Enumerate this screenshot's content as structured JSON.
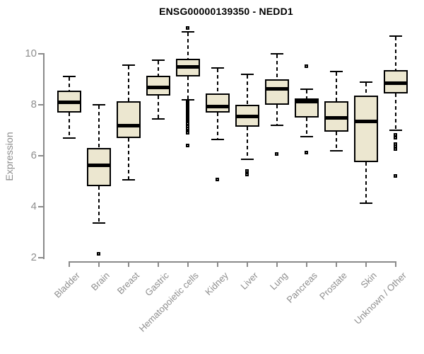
{
  "chart_data": {
    "type": "boxplot",
    "title": "ENSG00000139350 - NEDD1",
    "ylabel": "Expression",
    "y_axis": {
      "min": 2,
      "max": 10,
      "ticks": [
        10,
        8,
        6,
        4,
        2
      ]
    },
    "grid": false,
    "legend": false,
    "categories": [
      "Bladder",
      "Brain",
      "Breast",
      "Gastric",
      "Hematopoietic cells",
      "Kidney",
      "Liver",
      "Lung",
      "Pancreas",
      "Prostate",
      "Skin",
      "Unknown / Other"
    ],
    "boxes": [
      {
        "category": "Bladder",
        "whisker_low": 6.7,
        "q1": 7.7,
        "median": 8.1,
        "q3": 8.55,
        "whisker_high": 9.1,
        "outliers": []
      },
      {
        "category": "Brain",
        "whisker_low": 3.35,
        "q1": 4.8,
        "median": 5.65,
        "q3": 6.3,
        "whisker_high": 8.0,
        "outliers": [
          2.15
        ]
      },
      {
        "category": "Breast",
        "whisker_low": 5.05,
        "q1": 6.7,
        "median": 7.2,
        "q3": 8.15,
        "whisker_high": 9.55,
        "outliers": []
      },
      {
        "category": "Gastric",
        "whisker_low": 7.45,
        "q1": 8.35,
        "median": 8.7,
        "q3": 9.15,
        "whisker_high": 9.75,
        "outliers": []
      },
      {
        "category": "Hematopoietic cells",
        "whisker_low": 8.2,
        "q1": 9.1,
        "median": 9.5,
        "q3": 9.8,
        "whisker_high": 10.85,
        "outliers": [
          11.0,
          8.1,
          8.05,
          8.0,
          7.95,
          7.9,
          7.85,
          7.8,
          7.75,
          7.7,
          7.65,
          7.6,
          7.55,
          7.5,
          7.45,
          7.4,
          7.35,
          7.3,
          7.25,
          7.15,
          7.05,
          6.95,
          6.9,
          6.4
        ]
      },
      {
        "category": "Kidney",
        "whisker_low": 6.65,
        "q1": 7.7,
        "median": 7.95,
        "q3": 8.45,
        "whisker_high": 9.45,
        "outliers": [
          5.05
        ]
      },
      {
        "category": "Liver",
        "whisker_low": 5.85,
        "q1": 7.15,
        "median": 7.55,
        "q3": 8.0,
        "whisker_high": 9.2,
        "outliers": [
          5.4,
          5.25
        ]
      },
      {
        "category": "Lung",
        "whisker_low": 7.2,
        "q1": 8.0,
        "median": 8.65,
        "q3": 9.0,
        "whisker_high": 10.0,
        "outliers": [
          6.05
        ]
      },
      {
        "category": "Pancreas",
        "whisker_low": 6.75,
        "q1": 7.5,
        "median": 8.15,
        "q3": 8.25,
        "whisker_high": 8.6,
        "outliers": [
          9.5,
          6.1
        ]
      },
      {
        "category": "Prostate",
        "whisker_low": 6.2,
        "q1": 6.95,
        "median": 7.5,
        "q3": 8.15,
        "whisker_high": 9.3,
        "outliers": []
      },
      {
        "category": "Skin",
        "whisker_low": 4.15,
        "q1": 5.75,
        "median": 7.35,
        "q3": 8.35,
        "whisker_high": 8.9,
        "outliers": []
      },
      {
        "category": "Unknown / Other",
        "whisker_low": 7.0,
        "q1": 8.45,
        "median": 8.85,
        "q3": 9.35,
        "whisker_high": 10.7,
        "outliers": [
          6.8,
          6.7,
          6.45,
          6.35,
          6.25,
          5.2
        ]
      }
    ],
    "colors": {
      "background": "#ffffff",
      "box_fill": "#ece7d0",
      "box_border": "#000000",
      "median": "#000000",
      "whisker": "#000000",
      "outlier": "#000000",
      "axis": "#8a8a8a",
      "tick_label": "#8e8e8e",
      "title": "#000000"
    }
  }
}
